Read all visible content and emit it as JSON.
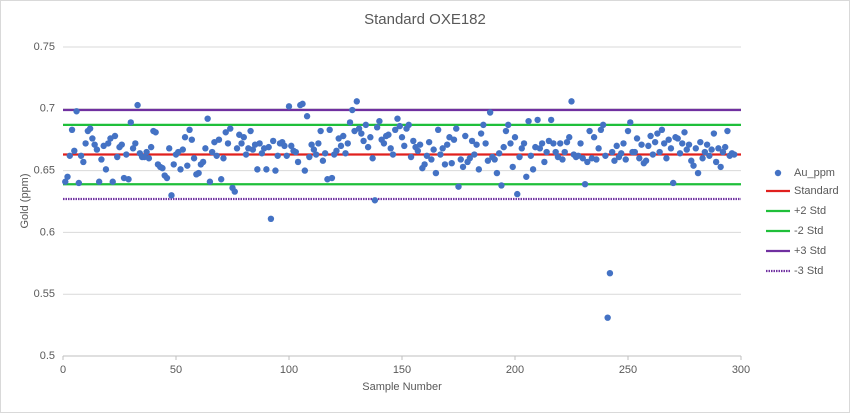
{
  "chart_data": {
    "type": "scatter",
    "title": "Standard OXE182",
    "xlabel": "Sample Number",
    "ylabel": "Gold (ppm)",
    "xlim": [
      0,
      300
    ],
    "xticks": [
      0,
      50,
      100,
      150,
      200,
      250,
      300
    ],
    "ylim": [
      0.5,
      0.75
    ],
    "yticks": [
      0.5,
      0.55,
      0.6,
      0.65,
      0.7,
      0.75
    ],
    "grid": true,
    "legend": "right",
    "series": [
      {
        "name": "Au_ppm",
        "type": "scatter",
        "color": "#4472c4",
        "x": [
          1,
          2,
          3,
          4,
          5,
          6,
          7,
          8,
          9,
          10,
          11,
          12,
          13,
          14,
          15,
          16,
          17,
          18,
          19,
          20,
          21,
          22,
          23,
          24,
          25,
          26,
          27,
          28,
          29,
          30,
          31,
          32,
          33,
          34,
          35,
          36,
          37,
          38,
          39,
          40,
          41,
          42,
          43,
          44,
          45,
          46,
          47,
          48,
          49,
          50,
          51,
          52,
          53,
          54,
          55,
          56,
          57,
          58,
          59,
          60,
          61,
          62,
          63,
          64,
          65,
          66,
          67,
          68,
          69,
          70,
          71,
          72,
          73,
          74,
          75,
          76,
          77,
          78,
          79,
          80,
          81,
          82,
          83,
          84,
          85,
          86,
          87,
          88,
          89,
          90,
          91,
          92,
          93,
          94,
          95,
          96,
          97,
          98,
          99,
          100,
          101,
          102,
          103,
          104,
          105,
          106,
          107,
          108,
          109,
          110,
          111,
          112,
          113,
          114,
          115,
          116,
          117,
          118,
          119,
          120,
          121,
          122,
          123,
          124,
          125,
          126,
          127,
          128,
          129,
          130,
          131,
          132,
          133,
          134,
          135,
          136,
          137,
          138,
          139,
          140,
          141,
          142,
          143,
          144,
          145,
          146,
          147,
          148,
          149,
          150,
          151,
          152,
          153,
          154,
          155,
          156,
          157,
          158,
          159,
          160,
          161,
          162,
          163,
          164,
          165,
          166,
          167,
          168,
          169,
          170,
          171,
          172,
          173,
          174,
          175,
          176,
          177,
          178,
          179,
          180,
          181,
          182,
          183,
          184,
          185,
          186,
          187,
          188,
          189,
          190,
          191,
          192,
          193,
          194,
          195,
          196,
          197,
          198,
          199,
          200,
          201,
          202,
          203,
          204,
          205,
          206,
          207,
          208,
          209,
          210,
          211,
          212,
          213,
          214,
          215,
          216,
          217,
          218,
          219,
          220,
          221,
          222,
          223,
          224,
          225,
          226,
          227,
          228,
          229,
          230,
          231,
          232,
          233,
          234,
          235,
          236,
          237,
          238,
          239,
          240,
          241,
          242,
          243,
          244,
          245,
          246,
          247,
          248,
          249,
          250,
          251,
          252,
          253,
          254,
          255,
          256,
          257,
          258,
          259,
          260,
          261,
          262,
          263,
          264,
          265,
          266,
          267,
          268,
          269,
          270,
          271,
          272,
          273,
          274,
          275,
          276,
          277,
          278,
          279,
          280,
          281,
          282,
          283,
          284,
          285,
          286,
          287,
          288,
          289,
          290,
          291,
          292,
          293,
          294,
          295,
          296,
          297
        ],
        "values": [
          0.641,
          0.645,
          0.662,
          0.683,
          0.666,
          0.698,
          0.64,
          0.662,
          0.657,
          0.672,
          0.682,
          0.684,
          0.676,
          0.671,
          0.667,
          0.641,
          0.659,
          0.67,
          0.651,
          0.672,
          0.676,
          0.641,
          0.678,
          0.661,
          0.669,
          0.671,
          0.644,
          0.663,
          0.643,
          0.689,
          0.668,
          0.672,
          0.703,
          0.664,
          0.661,
          0.661,
          0.665,
          0.66,
          0.669,
          0.682,
          0.681,
          0.655,
          0.653,
          0.652,
          0.646,
          0.644,
          0.668,
          0.63,
          0.655,
          0.663,
          0.665,
          0.651,
          0.667,
          0.677,
          0.654,
          0.683,
          0.675,
          0.66,
          0.647,
          0.648,
          0.655,
          0.657,
          0.668,
          0.692,
          0.641,
          0.665,
          0.673,
          0.662,
          0.675,
          0.643,
          0.66,
          0.681,
          0.672,
          0.684,
          0.636,
          0.633,
          0.668,
          0.679,
          0.672,
          0.677,
          0.663,
          0.668,
          0.682,
          0.667,
          0.671,
          0.651,
          0.672,
          0.664,
          0.668,
          0.651,
          0.669,
          0.611,
          0.674,
          0.65,
          0.662,
          0.672,
          0.673,
          0.67,
          0.662,
          0.702,
          0.67,
          0.666,
          0.665,
          0.657,
          0.703,
          0.704,
          0.65,
          0.694,
          0.661,
          0.671,
          0.667,
          0.663,
          0.672,
          0.682,
          0.658,
          0.664,
          0.643,
          0.683,
          0.644,
          0.663,
          0.666,
          0.676,
          0.67,
          0.678,
          0.664,
          0.672,
          0.689,
          0.699,
          0.682,
          0.706,
          0.684,
          0.68,
          0.674,
          0.687,
          0.669,
          0.677,
          0.66,
          0.626,
          0.685,
          0.69,
          0.675,
          0.672,
          0.678,
          0.679,
          0.668,
          0.663,
          0.683,
          0.692,
          0.686,
          0.677,
          0.67,
          0.684,
          0.687,
          0.661,
          0.674,
          0.669,
          0.666,
          0.671,
          0.652,
          0.655,
          0.662,
          0.673,
          0.659,
          0.667,
          0.648,
          0.683,
          0.663,
          0.668,
          0.655,
          0.671,
          0.677,
          0.656,
          0.675,
          0.684,
          0.637,
          0.659,
          0.653,
          0.678,
          0.657,
          0.66,
          0.674,
          0.663,
          0.671,
          0.651,
          0.68,
          0.687,
          0.672,
          0.658,
          0.697,
          0.661,
          0.659,
          0.648,
          0.664,
          0.638,
          0.669,
          0.682,
          0.687,
          0.672,
          0.653,
          0.677,
          0.631,
          0.661,
          0.668,
          0.672,
          0.645,
          0.69,
          0.662,
          0.651,
          0.669,
          0.691,
          0.668,
          0.672,
          0.657,
          0.665,
          0.674,
          0.691,
          0.672,
          0.665,
          0.661,
          0.672,
          0.659,
          0.665,
          0.673,
          0.677,
          0.706,
          0.663,
          0.661,
          0.662,
          0.672,
          0.66,
          0.639,
          0.657,
          0.682,
          0.66,
          0.677,
          0.659,
          0.668,
          0.683,
          0.687,
          0.662,
          0.531,
          0.567,
          0.665,
          0.658,
          0.67,
          0.661,
          0.664,
          0.672,
          0.659,
          0.682,
          0.689,
          0.665,
          0.665,
          0.676,
          0.66,
          0.671,
          0.656,
          0.658,
          0.67,
          0.678,
          0.663,
          0.673,
          0.68,
          0.665,
          0.683,
          0.672,
          0.66,
          0.675,
          0.668,
          0.64,
          0.677,
          0.676,
          0.664,
          0.672,
          0.681,
          0.667,
          0.671,
          0.658,
          0.654,
          0.668,
          0.648,
          0.673,
          0.66,
          0.665,
          0.671,
          0.662,
          0.667,
          0.68,
          0.657,
          0.668,
          0.653,
          0.665,
          0.669,
          0.682,
          0.662,
          0.664,
          0.663
        ]
      },
      {
        "name": "Standard",
        "type": "line",
        "color": "#e0201e",
        "x": [
          0,
          300
        ],
        "values": [
          0.663,
          0.663
        ]
      },
      {
        "name": "+2 Std",
        "type": "line",
        "color": "#1fbf3a",
        "x": [
          0,
          300
        ],
        "values": [
          0.687,
          0.687
        ]
      },
      {
        "name": "-2 Std",
        "type": "line",
        "color": "#1fbf3a",
        "x": [
          0,
          300
        ],
        "values": [
          0.639,
          0.639
        ]
      },
      {
        "name": "+3 Std",
        "type": "line",
        "color": "#7030a0",
        "x": [
          0,
          300
        ],
        "values": [
          0.699,
          0.699
        ]
      },
      {
        "name": "-3 Std",
        "type": "line",
        "color": "#7030a0",
        "dash": true,
        "x": [
          0,
          300
        ],
        "values": [
          0.627,
          0.627
        ]
      }
    ]
  }
}
